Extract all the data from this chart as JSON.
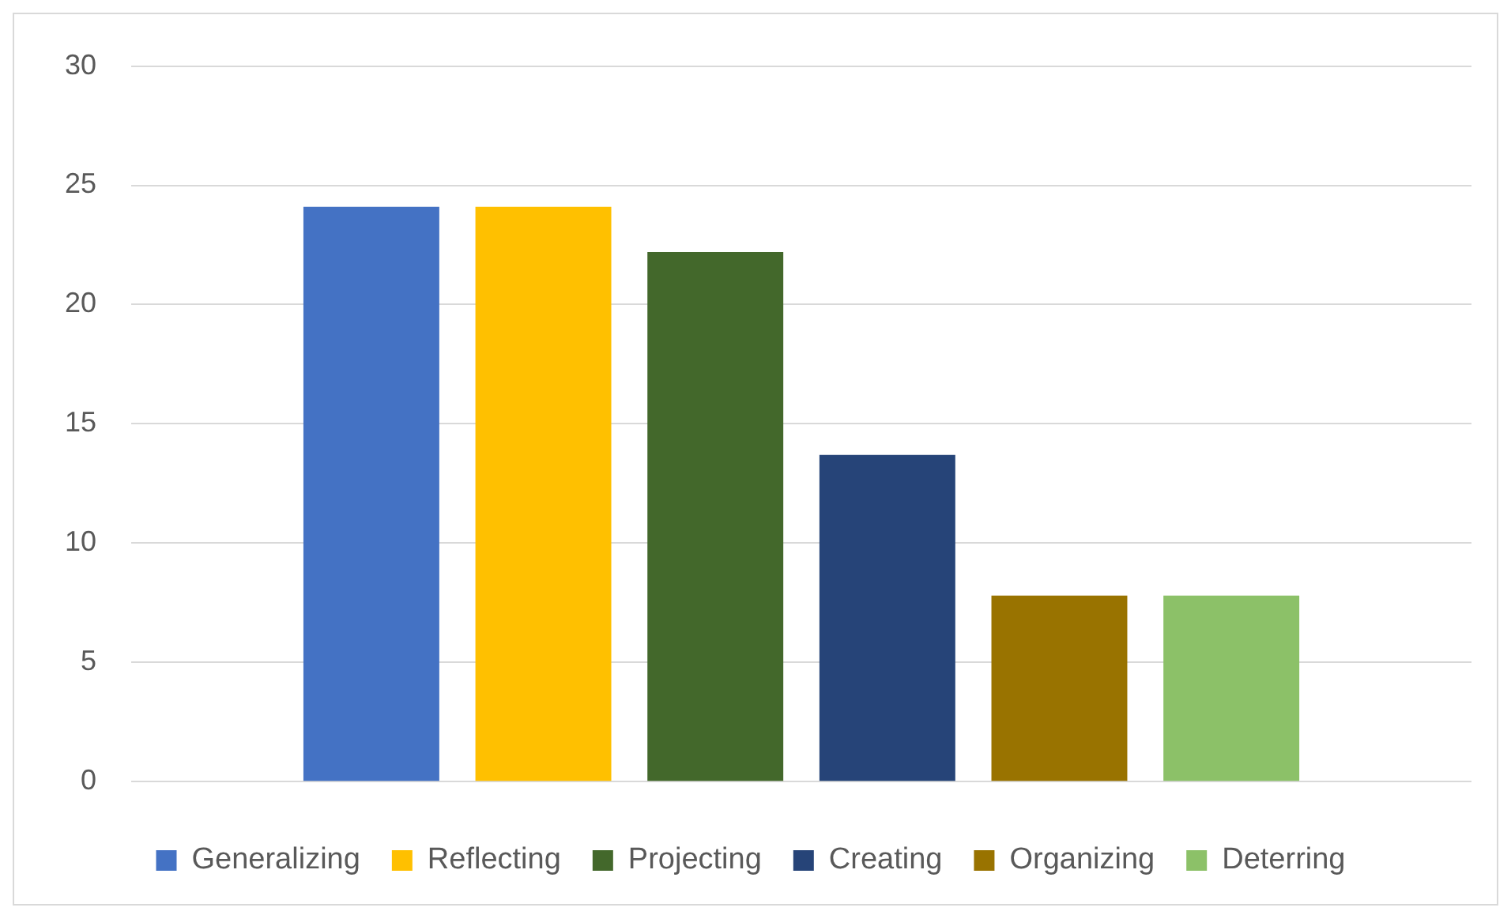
{
  "chart_data": {
    "type": "bar",
    "categories": [
      null
    ],
    "series": [
      {
        "name": "Generalizing",
        "color": "#4472c4",
        "values": [
          24.1
        ]
      },
      {
        "name": "Reflecting",
        "color": "#ffc000",
        "values": [
          24.1
        ]
      },
      {
        "name": "Projecting",
        "color": "#43682b",
        "values": [
          22.2
        ]
      },
      {
        "name": "Creating",
        "color": "#264478",
        "values": [
          13.7
        ]
      },
      {
        "name": "Organizing",
        "color": "#997300",
        "values": [
          7.8
        ]
      },
      {
        "name": "Deterring",
        "color": "#8cc168",
        "values": [
          7.8
        ]
      }
    ],
    "ylim": [
      0,
      30
    ],
    "yticks": [
      0,
      5,
      10,
      15,
      20,
      25,
      30
    ],
    "grid": "y",
    "legend": "bottom"
  }
}
